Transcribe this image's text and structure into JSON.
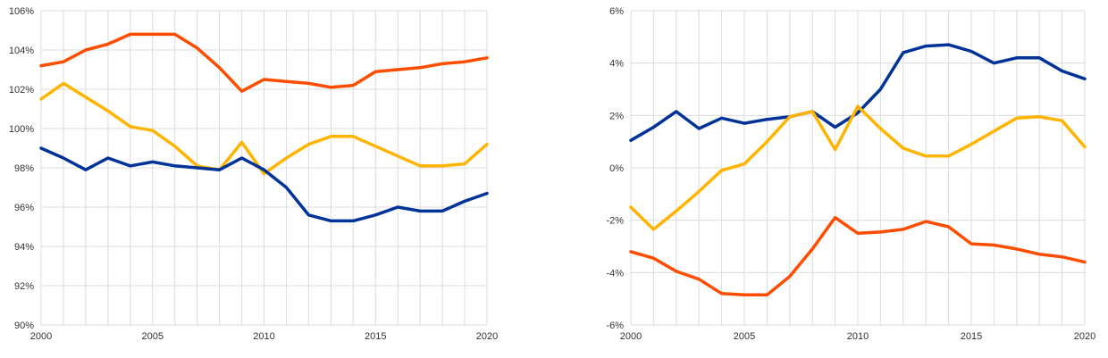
{
  "chart_data": [
    {
      "type": "line",
      "ylim": [
        90,
        106
      ],
      "xlim": [
        2000,
        2020
      ],
      "y_ticks": [
        90,
        92,
        94,
        96,
        98,
        100,
        102,
        104,
        106
      ],
      "y_tick_labels": [
        "90%",
        "92%",
        "94%",
        "96%",
        "98%",
        "100%",
        "102%",
        "104%",
        "106%"
      ],
      "x_ticks": [
        2000,
        2005,
        2010,
        2015,
        2020
      ],
      "x_tick_labels": [
        "2000",
        "2005",
        "2010",
        "2015",
        "2020"
      ],
      "grid": true,
      "x": [
        2000,
        2001,
        2002,
        2003,
        2004,
        2005,
        2006,
        2007,
        2008,
        2009,
        2010,
        2011,
        2012,
        2013,
        2014,
        2015,
        2016,
        2017,
        2018,
        2019,
        2020
      ],
      "series": [
        {
          "color": "#ff4d00",
          "values": [
            103.2,
            103.4,
            104.0,
            104.3,
            104.8,
            104.8,
            104.8,
            104.1,
            103.1,
            101.9,
            102.5,
            102.4,
            102.3,
            102.1,
            102.2,
            102.9,
            103.0,
            103.1,
            103.3,
            103.4,
            103.6
          ]
        },
        {
          "color": "#ffb400",
          "values": [
            101.5,
            102.3,
            101.6,
            100.9,
            100.1,
            99.9,
            99.1,
            98.1,
            97.9,
            99.3,
            97.7,
            98.5,
            99.2,
            99.6,
            99.6,
            99.1,
            98.6,
            98.1,
            98.1,
            98.2,
            99.2
          ]
        },
        {
          "color": "#003399",
          "values": [
            99.0,
            98.5,
            97.9,
            98.5,
            98.1,
            98.3,
            98.1,
            98.0,
            97.9,
            98.5,
            97.9,
            97.0,
            95.6,
            95.3,
            95.3,
            95.6,
            96.0,
            95.8,
            95.8,
            96.3,
            96.7
          ]
        }
      ]
    },
    {
      "type": "line",
      "ylim": [
        -6,
        6
      ],
      "xlim": [
        2000,
        2020
      ],
      "y_ticks": [
        -6,
        -4,
        -2,
        0,
        2,
        4,
        6
      ],
      "y_tick_labels": [
        "-6%",
        "-4%",
        "-2%",
        "0%",
        "2%",
        "4%",
        "6%"
      ],
      "x_ticks": [
        2000,
        2005,
        2010,
        2015,
        2020
      ],
      "x_tick_labels": [
        "2000",
        "2005",
        "2010",
        "2015",
        "2020"
      ],
      "grid": true,
      "x": [
        2000,
        2001,
        2002,
        2003,
        2004,
        2005,
        2006,
        2007,
        2008,
        2009,
        2010,
        2011,
        2012,
        2013,
        2014,
        2015,
        2016,
        2017,
        2018,
        2019,
        2020
      ],
      "series": [
        {
          "color": "#003399",
          "values": [
            1.05,
            1.55,
            2.15,
            1.5,
            1.9,
            1.7,
            1.85,
            1.95,
            2.15,
            1.55,
            2.1,
            3.0,
            4.4,
            4.65,
            4.7,
            4.45,
            4.0,
            4.2,
            4.2,
            3.7,
            3.4
          ]
        },
        {
          "color": "#ffb400",
          "values": [
            -1.5,
            -2.35,
            -1.65,
            -0.9,
            -0.1,
            0.15,
            1.0,
            1.95,
            2.15,
            0.7,
            2.35,
            1.5,
            0.75,
            0.45,
            0.45,
            0.9,
            1.4,
            1.9,
            1.95,
            1.8,
            0.8
          ]
        },
        {
          "color": "#ff4d00",
          "values": [
            -3.2,
            -3.45,
            -3.95,
            -4.25,
            -4.8,
            -4.85,
            -4.85,
            -4.15,
            -3.1,
            -1.9,
            -2.5,
            -2.45,
            -2.35,
            -2.05,
            -2.25,
            -2.9,
            -2.95,
            -3.1,
            -3.3,
            -3.4,
            -3.6
          ]
        }
      ]
    }
  ]
}
